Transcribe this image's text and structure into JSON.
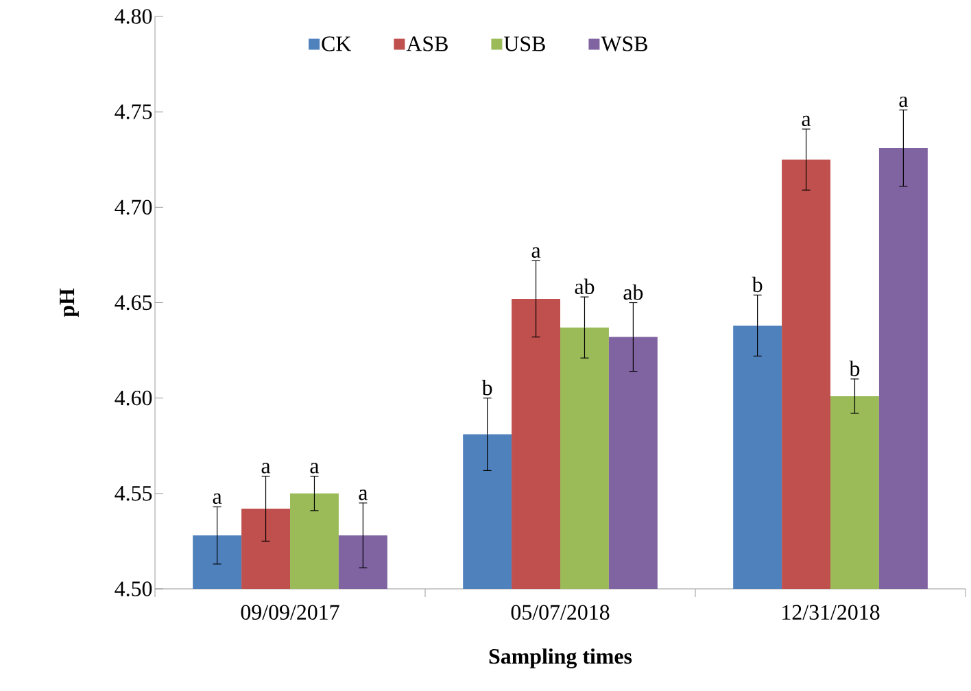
{
  "chart_data": {
    "type": "bar",
    "xlabel": "Sampling times",
    "ylabel": "pH",
    "categories": [
      "09/09/2017",
      "05/07/2018",
      "12/31/2018"
    ],
    "series": [
      {
        "name": "CK",
        "color": "#4f81bd",
        "values": [
          4.528,
          4.581,
          4.638
        ],
        "errors": [
          0.015,
          0.019,
          0.016
        ],
        "value_labels": [
          "a",
          "b",
          "b"
        ]
      },
      {
        "name": "ASB",
        "color": "#c0504d",
        "values": [
          4.542,
          4.652,
          4.725
        ],
        "errors": [
          0.017,
          0.02,
          0.016
        ],
        "value_labels": [
          "a",
          "a",
          "a"
        ]
      },
      {
        "name": "USB",
        "color": "#9bbb59",
        "values": [
          4.55,
          4.637,
          4.601
        ],
        "errors": [
          0.009,
          0.016,
          0.009
        ],
        "value_labels": [
          "a",
          "ab",
          "b"
        ]
      },
      {
        "name": "WSB",
        "color": "#8064a2",
        "values": [
          4.528,
          4.632,
          4.731
        ],
        "errors": [
          0.017,
          0.018,
          0.02
        ],
        "value_labels": [
          "a",
          "ab",
          "a"
        ]
      }
    ],
    "ylim": [
      4.5,
      4.8
    ],
    "yticks": [
      {
        "value": 4.5,
        "label": "4.50"
      },
      {
        "value": 4.55,
        "label": "4.55"
      },
      {
        "value": 4.6,
        "label": "4.60"
      },
      {
        "value": 4.65,
        "label": "4.65"
      },
      {
        "value": 4.7,
        "label": "4.70"
      },
      {
        "value": 4.75,
        "label": "4.75"
      },
      {
        "value": 4.8,
        "label": "4.80"
      }
    ],
    "grid": false,
    "legend": "top"
  }
}
